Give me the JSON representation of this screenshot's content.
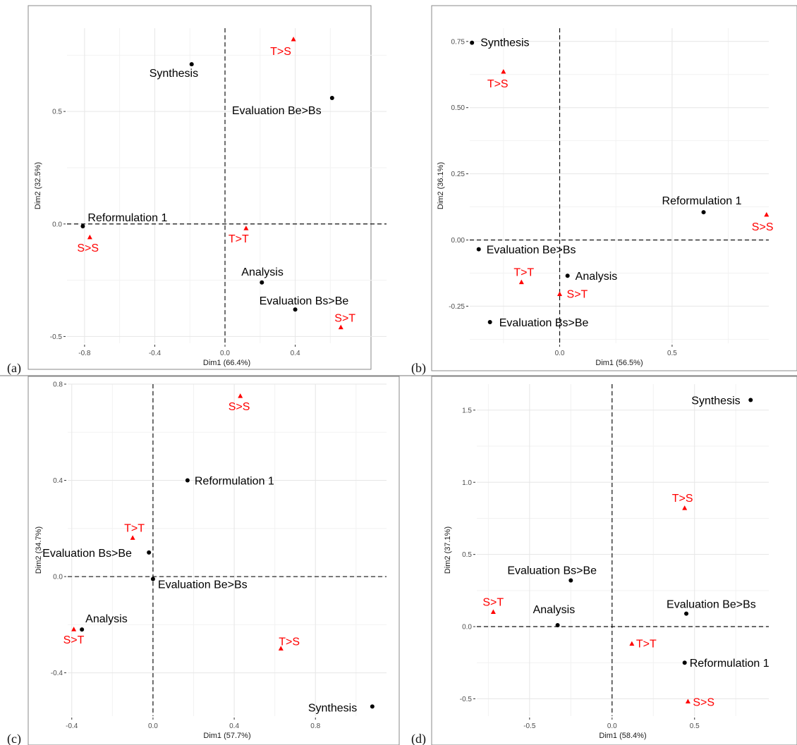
{
  "chart_data": [
    {
      "type": "scatter",
      "panel_label": "(a)",
      "xlabel": "Dim1 (66.4%)",
      "ylabel": "Dim2 (32.5%)",
      "xlim": [
        -0.9,
        0.92
      ],
      "ylim": [
        -0.53,
        0.87
      ],
      "xticks": [
        -0.8,
        -0.4,
        0.0,
        0.4
      ],
      "yticks": [
        -0.5,
        0.0,
        0.5
      ],
      "xtick_labels": [
        "-0.8",
        "-0.4",
        "0.0",
        "0.4"
      ],
      "ytick_labels": [
        "-0.5",
        "0.0",
        "0.5"
      ],
      "grid": true,
      "colors": {
        "black_series": "#000000",
        "red_series": "#ff0000"
      },
      "points": [
        {
          "label": "Synthesis",
          "x": -0.19,
          "y": 0.71,
          "color": "#000000",
          "shape": "circle"
        },
        {
          "label": "Evaluation Be>Bs",
          "x": 0.61,
          "y": 0.56,
          "color": "#000000",
          "shape": "circle"
        },
        {
          "label": "Reformulation 1",
          "x": -0.81,
          "y": -0.01,
          "color": "#000000",
          "shape": "circle"
        },
        {
          "label": "Analysis",
          "x": 0.21,
          "y": -0.26,
          "color": "#000000",
          "shape": "circle"
        },
        {
          "label": "Evaluation Bs>Be",
          "x": 0.4,
          "y": -0.38,
          "color": "#000000",
          "shape": "circle"
        },
        {
          "label": "T>S",
          "x": 0.39,
          "y": 0.82,
          "color": "#ff0000",
          "shape": "triangle"
        },
        {
          "label": "S>S",
          "x": -0.77,
          "y": -0.06,
          "color": "#ff0000",
          "shape": "triangle"
        },
        {
          "label": "T>T",
          "x": 0.12,
          "y": -0.02,
          "color": "#ff0000",
          "shape": "triangle"
        },
        {
          "label": "S>T",
          "x": 0.66,
          "y": -0.46,
          "color": "#ff0000",
          "shape": "triangle"
        }
      ]
    },
    {
      "type": "scatter",
      "panel_label": "(b)",
      "xlabel": "Dim1 (56.5%)",
      "ylabel": "Dim2 (36.1%)",
      "xlim": [
        -0.4,
        0.93
      ],
      "ylim": [
        -0.39,
        0.8
      ],
      "xticks": [
        0.0,
        0.5
      ],
      "yticks": [
        -0.25,
        0.0,
        0.25,
        0.5,
        0.75
      ],
      "xtick_labels": [
        "0.0",
        "0.5"
      ],
      "ytick_labels": [
        "-0.25",
        "0.00",
        "0.25",
        "0.50",
        "0.75"
      ],
      "grid": true,
      "colors": {
        "black_series": "#000000",
        "red_series": "#ff0000"
      },
      "points": [
        {
          "label": "Synthesis",
          "x": -0.39,
          "y": 0.745,
          "color": "#000000",
          "shape": "circle"
        },
        {
          "label": "Reformulation 1",
          "x": 0.64,
          "y": 0.105,
          "color": "#000000",
          "shape": "circle"
        },
        {
          "label": "Evaluation Be>Bs",
          "x": -0.36,
          "y": -0.035,
          "color": "#000000",
          "shape": "circle"
        },
        {
          "label": "Analysis",
          "x": 0.035,
          "y": -0.135,
          "color": "#000000",
          "shape": "circle"
        },
        {
          "label": "Evaluation Bs>Be",
          "x": -0.31,
          "y": -0.31,
          "color": "#000000",
          "shape": "circle"
        },
        {
          "label": "T>S",
          "x": -0.25,
          "y": 0.635,
          "color": "#ff0000",
          "shape": "triangle"
        },
        {
          "label": "S>S",
          "x": 0.92,
          "y": 0.095,
          "color": "#ff0000",
          "shape": "triangle"
        },
        {
          "label": "T>T",
          "x": -0.17,
          "y": -0.16,
          "color": "#ff0000",
          "shape": "triangle"
        },
        {
          "label": "S>T",
          "x": 0.0,
          "y": -0.205,
          "color": "#ff0000",
          "shape": "triangle"
        }
      ]
    },
    {
      "type": "scatter",
      "panel_label": "(c)",
      "xlabel": "Dim1 (57.7%)",
      "ylabel": "Dim2 (34.7%)",
      "xlim": [
        -0.42,
        1.15
      ],
      "ylim": [
        -0.58,
        0.8
      ],
      "xticks": [
        -0.4,
        0.0,
        0.4,
        0.8
      ],
      "yticks": [
        -0.4,
        0.0,
        0.4,
        0.8
      ],
      "xtick_labels": [
        "-0.4",
        "0.0",
        "0.4",
        "0.8"
      ],
      "ytick_labels": [
        "-0.4",
        "0.0",
        "0.4",
        "0.8"
      ],
      "grid": true,
      "colors": {
        "black_series": "#000000",
        "red_series": "#ff0000"
      },
      "points": [
        {
          "label": "Reformulation 1",
          "x": 0.17,
          "y": 0.4,
          "color": "#000000",
          "shape": "circle"
        },
        {
          "label": "Evaluation Bs>Be",
          "x": -0.02,
          "y": 0.1,
          "color": "#000000",
          "shape": "circle"
        },
        {
          "label": "Evaluation Be>Bs",
          "x": 0.0,
          "y": -0.01,
          "color": "#000000",
          "shape": "circle"
        },
        {
          "label": "Analysis",
          "x": -0.35,
          "y": -0.22,
          "color": "#000000",
          "shape": "circle"
        },
        {
          "label": "Synthesis",
          "x": 1.08,
          "y": -0.54,
          "color": "#000000",
          "shape": "circle"
        },
        {
          "label": "S>S",
          "x": 0.43,
          "y": 0.75,
          "color": "#ff0000",
          "shape": "triangle"
        },
        {
          "label": "T>T",
          "x": -0.1,
          "y": 0.16,
          "color": "#ff0000",
          "shape": "triangle"
        },
        {
          "label": "S>T",
          "x": -0.39,
          "y": -0.22,
          "color": "#ff0000",
          "shape": "triangle"
        },
        {
          "label": "T>S",
          "x": 0.63,
          "y": -0.3,
          "color": "#ff0000",
          "shape": "triangle"
        }
      ]
    },
    {
      "type": "scatter",
      "panel_label": "(d)",
      "xlabel": "Dim1 (58.4%)",
      "ylabel": "Dim2 (37.1%)",
      "xlim": [
        -0.82,
        0.95
      ],
      "ylim": [
        -0.62,
        1.68
      ],
      "xticks": [
        -0.5,
        0.0,
        0.5
      ],
      "yticks": [
        -0.5,
        0.0,
        0.5,
        1.0,
        1.5
      ],
      "xtick_labels": [
        "-0.5",
        "0.0",
        "0.5"
      ],
      "ytick_labels": [
        "-0.5",
        "0.0",
        "0.5",
        "1.0",
        "1.5"
      ],
      "grid": true,
      "colors": {
        "black_series": "#000000",
        "red_series": "#ff0000"
      },
      "points": [
        {
          "label": "Synthesis",
          "x": 0.84,
          "y": 1.57,
          "color": "#000000",
          "shape": "circle"
        },
        {
          "label": "Evaluation Bs>Be",
          "x": -0.25,
          "y": 0.32,
          "color": "#000000",
          "shape": "circle"
        },
        {
          "label": "Evaluation Be>Bs",
          "x": 0.45,
          "y": 0.09,
          "color": "#000000",
          "shape": "circle"
        },
        {
          "label": "Analysis",
          "x": -0.33,
          "y": 0.01,
          "color": "#000000",
          "shape": "circle"
        },
        {
          "label": "Reformulation 1",
          "x": 0.44,
          "y": -0.25,
          "color": "#000000",
          "shape": "circle"
        },
        {
          "label": "T>S",
          "x": 0.44,
          "y": 0.82,
          "color": "#ff0000",
          "shape": "triangle"
        },
        {
          "label": "S>T",
          "x": -0.72,
          "y": 0.1,
          "color": "#ff0000",
          "shape": "triangle"
        },
        {
          "label": "T>T",
          "x": 0.12,
          "y": -0.12,
          "color": "#ff0000",
          "shape": "triangle"
        },
        {
          "label": "S>S",
          "x": 0.46,
          "y": -0.52,
          "color": "#ff0000",
          "shape": "triangle"
        }
      ]
    }
  ]
}
